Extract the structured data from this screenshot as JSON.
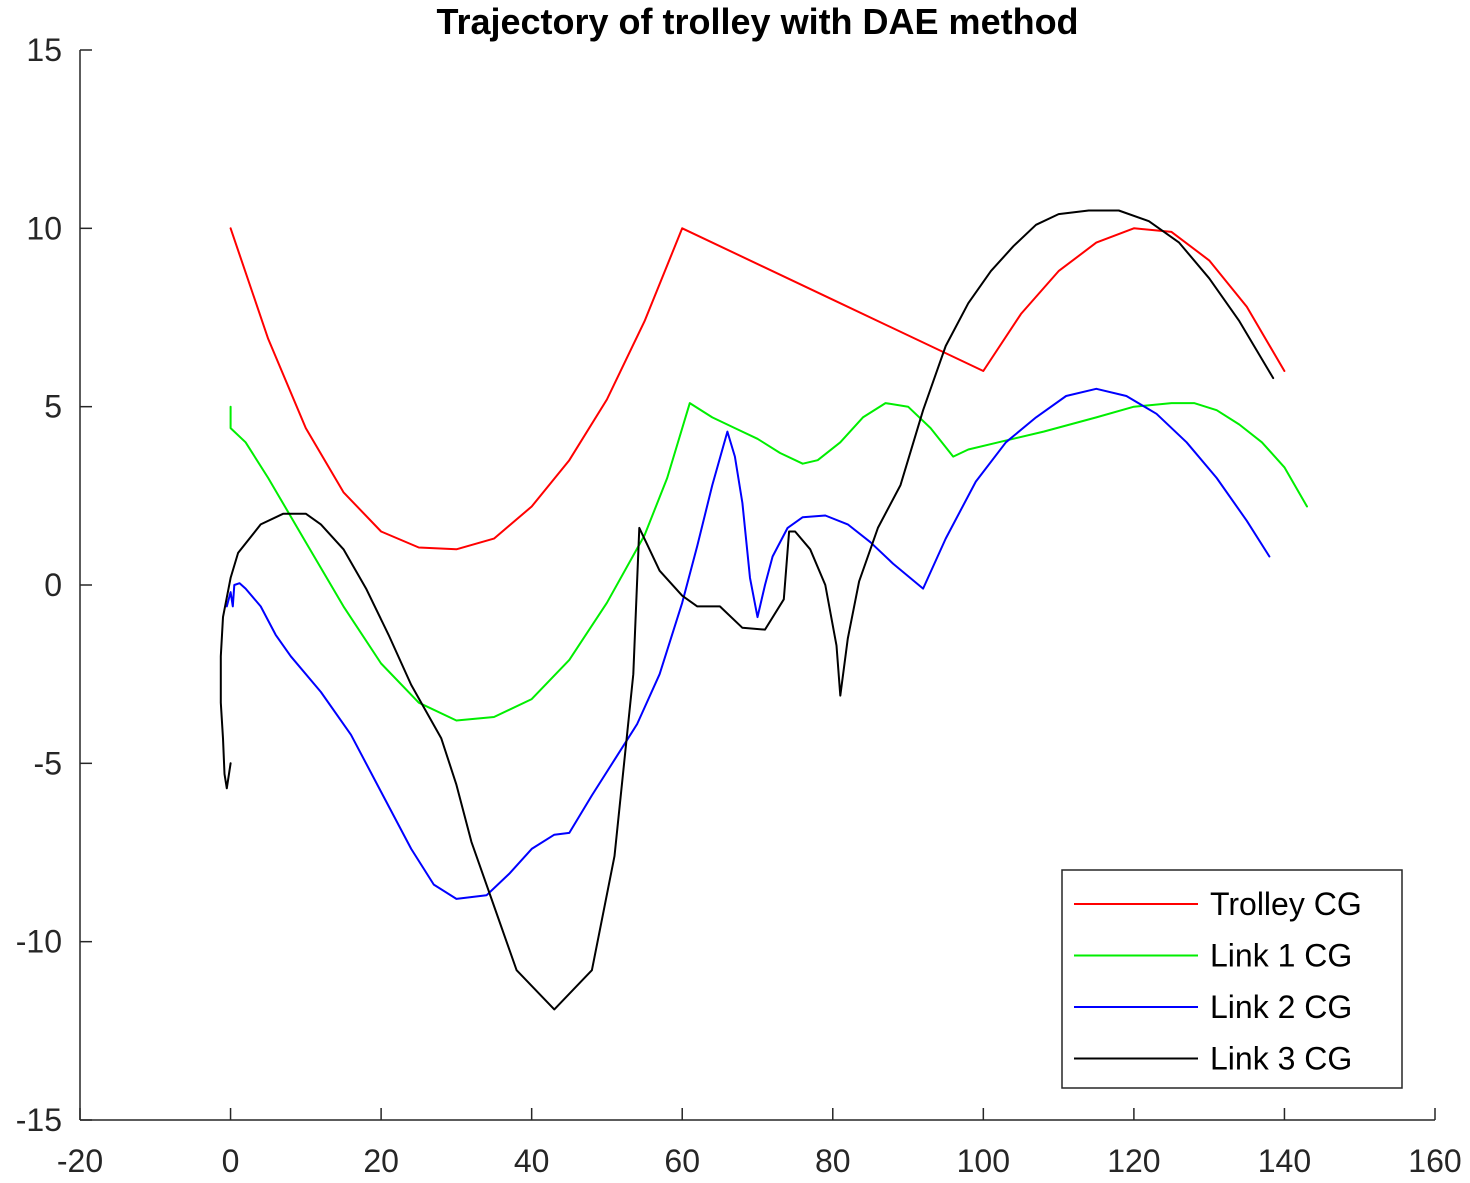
{
  "chart_data": {
    "type": "line",
    "title": "Trajectory of trolley with DAE method",
    "xlabel": "",
    "ylabel": "",
    "xlim": [
      -20,
      160
    ],
    "ylim": [
      -15,
      15
    ],
    "xticks": [
      -20,
      0,
      20,
      40,
      60,
      80,
      100,
      120,
      140,
      160
    ],
    "yticks": [
      -15,
      -10,
      -5,
      0,
      5,
      10,
      15
    ],
    "xtick_labels": [
      "-20",
      "0",
      "20",
      "40",
      "60",
      "80",
      "100",
      "120",
      "140",
      "160"
    ],
    "ytick_labels": [
      "-15",
      "-10",
      "-5",
      "0",
      "5",
      "10",
      "15"
    ],
    "grid": false,
    "legend_position": "bottom-right",
    "series": [
      {
        "name": "Trolley CG",
        "color": "#ff0000",
        "points": [
          [
            0,
            10
          ],
          [
            5,
            6.9
          ],
          [
            10,
            4.4
          ],
          [
            15,
            2.6
          ],
          [
            20,
            1.5
          ],
          [
            25,
            1.05
          ],
          [
            30,
            1.0
          ],
          [
            35,
            1.3
          ],
          [
            40,
            2.2
          ],
          [
            45,
            3.5
          ],
          [
            50,
            5.2
          ],
          [
            55,
            7.4
          ],
          [
            60,
            10
          ],
          [
            80,
            8
          ],
          [
            100,
            6
          ],
          [
            105,
            7.6
          ],
          [
            110,
            8.8
          ],
          [
            115,
            9.6
          ],
          [
            120,
            10
          ],
          [
            125,
            9.9
          ],
          [
            130,
            9.1
          ],
          [
            135,
            7.8
          ],
          [
            140,
            6
          ]
        ]
      },
      {
        "name": "Link 1 CG",
        "color": "#00ee00",
        "points": [
          [
            0,
            5
          ],
          [
            0,
            4.4
          ],
          [
            2,
            4
          ],
          [
            5,
            3
          ],
          [
            10,
            1.2
          ],
          [
            15,
            -0.6
          ],
          [
            20,
            -2.2
          ],
          [
            25,
            -3.3
          ],
          [
            30,
            -3.8
          ],
          [
            35,
            -3.7
          ],
          [
            40,
            -3.2
          ],
          [
            45,
            -2.1
          ],
          [
            50,
            -0.5
          ],
          [
            55,
            1.4
          ],
          [
            58,
            3.0
          ],
          [
            61,
            5.1
          ],
          [
            64,
            4.7
          ],
          [
            67,
            4.4
          ],
          [
            70,
            4.1
          ],
          [
            73,
            3.7
          ],
          [
            76,
            3.4
          ],
          [
            78,
            3.5
          ],
          [
            81,
            4.0
          ],
          [
            84,
            4.7
          ],
          [
            87,
            5.1
          ],
          [
            90,
            5.0
          ],
          [
            93,
            4.4
          ],
          [
            96,
            3.6
          ],
          [
            98,
            3.8
          ],
          [
            102,
            4.0
          ],
          [
            108,
            4.3
          ],
          [
            115,
            4.7
          ],
          [
            120,
            5.0
          ],
          [
            125,
            5.1
          ],
          [
            128,
            5.1
          ],
          [
            131,
            4.9
          ],
          [
            134,
            4.5
          ],
          [
            137,
            4.0
          ],
          [
            140,
            3.3
          ],
          [
            143,
            2.2
          ]
        ]
      },
      {
        "name": "Link 2 CG",
        "color": "#0000ff",
        "points": [
          [
            -0.5,
            -0.6
          ],
          [
            0,
            -0.2
          ],
          [
            0.3,
            -0.6
          ],
          [
            0.5,
            0
          ],
          [
            1.2,
            0.05
          ],
          [
            2,
            -0.1
          ],
          [
            4,
            -0.6
          ],
          [
            6,
            -1.4
          ],
          [
            8,
            -2
          ],
          [
            12,
            -3
          ],
          [
            16,
            -4.2
          ],
          [
            20,
            -5.8
          ],
          [
            24,
            -7.4
          ],
          [
            27,
            -8.4
          ],
          [
            30,
            -8.8
          ],
          [
            34,
            -8.7
          ],
          [
            37,
            -8.1
          ],
          [
            40,
            -7.4
          ],
          [
            43,
            -7.0
          ],
          [
            45,
            -6.95
          ],
          [
            48,
            -5.9
          ],
          [
            51,
            -4.9
          ],
          [
            54,
            -3.9
          ],
          [
            57,
            -2.5
          ],
          [
            60,
            -0.5
          ],
          [
            62,
            1.1
          ],
          [
            64,
            2.8
          ],
          [
            66,
            4.3
          ],
          [
            67,
            3.6
          ],
          [
            68,
            2.3
          ],
          [
            69,
            0.2
          ],
          [
            70,
            -0.9
          ],
          [
            71,
            0
          ],
          [
            72,
            0.8
          ],
          [
            74,
            1.6
          ],
          [
            76,
            1.9
          ],
          [
            79,
            1.95
          ],
          [
            82,
            1.7
          ],
          [
            85,
            1.2
          ],
          [
            88,
            0.6
          ],
          [
            92,
            -0.1
          ],
          [
            95,
            1.3
          ],
          [
            99,
            2.9
          ],
          [
            103,
            4.0
          ],
          [
            107,
            4.7
          ],
          [
            111,
            5.3
          ],
          [
            115,
            5.5
          ],
          [
            119,
            5.3
          ],
          [
            123,
            4.8
          ],
          [
            127,
            4.0
          ],
          [
            131,
            3.0
          ],
          [
            135,
            1.8
          ],
          [
            138,
            0.8
          ]
        ]
      },
      {
        "name": "Link 3 CG",
        "color": "#000000",
        "points": [
          [
            0,
            -5
          ],
          [
            -0.5,
            -5.7
          ],
          [
            -0.8,
            -5.3
          ],
          [
            -1,
            -4.3
          ],
          [
            -1.3,
            -3.3
          ],
          [
            -1.3,
            -2
          ],
          [
            -1,
            -0.9
          ],
          [
            0,
            0.2
          ],
          [
            1,
            0.9
          ],
          [
            4,
            1.7
          ],
          [
            7,
            2
          ],
          [
            10,
            2
          ],
          [
            12,
            1.7
          ],
          [
            15,
            1.0
          ],
          [
            18,
            -0.1
          ],
          [
            21,
            -1.4
          ],
          [
            24,
            -2.8
          ],
          [
            28,
            -4.3
          ],
          [
            30,
            -5.6
          ],
          [
            32,
            -7.2
          ],
          [
            35,
            -9
          ],
          [
            38,
            -10.8
          ],
          [
            43,
            -11.9
          ],
          [
            48,
            -10.8
          ],
          [
            51,
            -7.6
          ],
          [
            53.5,
            -2.5
          ],
          [
            54.3,
            1.6
          ],
          [
            55.2,
            1.2
          ],
          [
            57,
            0.4
          ],
          [
            60,
            -0.3
          ],
          [
            62,
            -0.6
          ],
          [
            65,
            -0.6
          ],
          [
            68,
            -1.2
          ],
          [
            71,
            -1.25
          ],
          [
            73.5,
            -0.4
          ],
          [
            74.2,
            1.5
          ],
          [
            75,
            1.5
          ],
          [
            77,
            1.0
          ],
          [
            79,
            0
          ],
          [
            80.5,
            -1.7
          ],
          [
            81,
            -3.1
          ],
          [
            82,
            -1.5
          ],
          [
            83.5,
            0.1
          ],
          [
            86,
            1.6
          ],
          [
            89,
            2.8
          ],
          [
            92,
            4.9
          ],
          [
            95,
            6.7
          ],
          [
            98,
            7.9
          ],
          [
            101,
            8.8
          ],
          [
            104,
            9.5
          ],
          [
            107,
            10.1
          ],
          [
            110,
            10.4
          ],
          [
            114,
            10.5
          ],
          [
            118,
            10.5
          ],
          [
            122,
            10.2
          ],
          [
            126,
            9.6
          ],
          [
            130,
            8.6
          ],
          [
            134,
            7.4
          ],
          [
            138.5,
            5.8
          ]
        ]
      }
    ]
  }
}
